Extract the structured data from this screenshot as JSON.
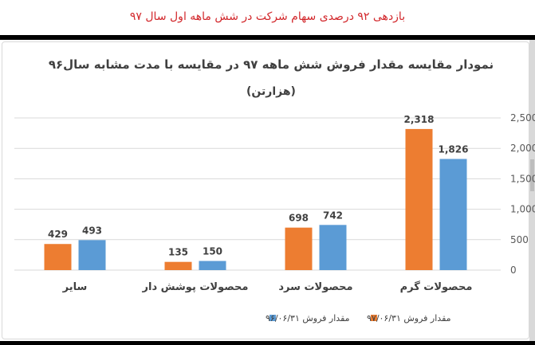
{
  "header": {
    "caption": "بازدهی ۹۲ درصدی سهام شرکت در شش ماهه اول سال ۹۷"
  },
  "chart_data": {
    "type": "bar",
    "title": "نمودار مقایسه مقدار فروش شش ماهه ۹۷ در مقایسه با مدت مشابه سال۹۶",
    "subtitle": "(هزارتن)",
    "categories": [
      "محصولات گرم",
      "محصولات سرد",
      "محصولات پوشش دار",
      "سایر"
    ],
    "series": [
      {
        "name": "مقدار فروش ۹۷/۰۶/۳۱",
        "color": "#ed7d31",
        "values": [
          2318,
          698,
          135,
          429
        ],
        "labels": [
          "2,318",
          "698",
          "135",
          "429"
        ]
      },
      {
        "name": "مقدار فروش ۹۶/۰۶/۳۱",
        "color": "#5b9bd5",
        "values": [
          1826,
          742,
          150,
          493
        ],
        "labels": [
          "1,826",
          "742",
          "150",
          "493"
        ]
      }
    ],
    "yticks": [
      "0",
      "500",
      "1,000",
      "1,500",
      "2,000",
      "2,500"
    ],
    "ylim": [
      0,
      2500
    ],
    "axis_position": "right",
    "grid": true,
    "legend_position": "bottom",
    "data_labels": true
  }
}
